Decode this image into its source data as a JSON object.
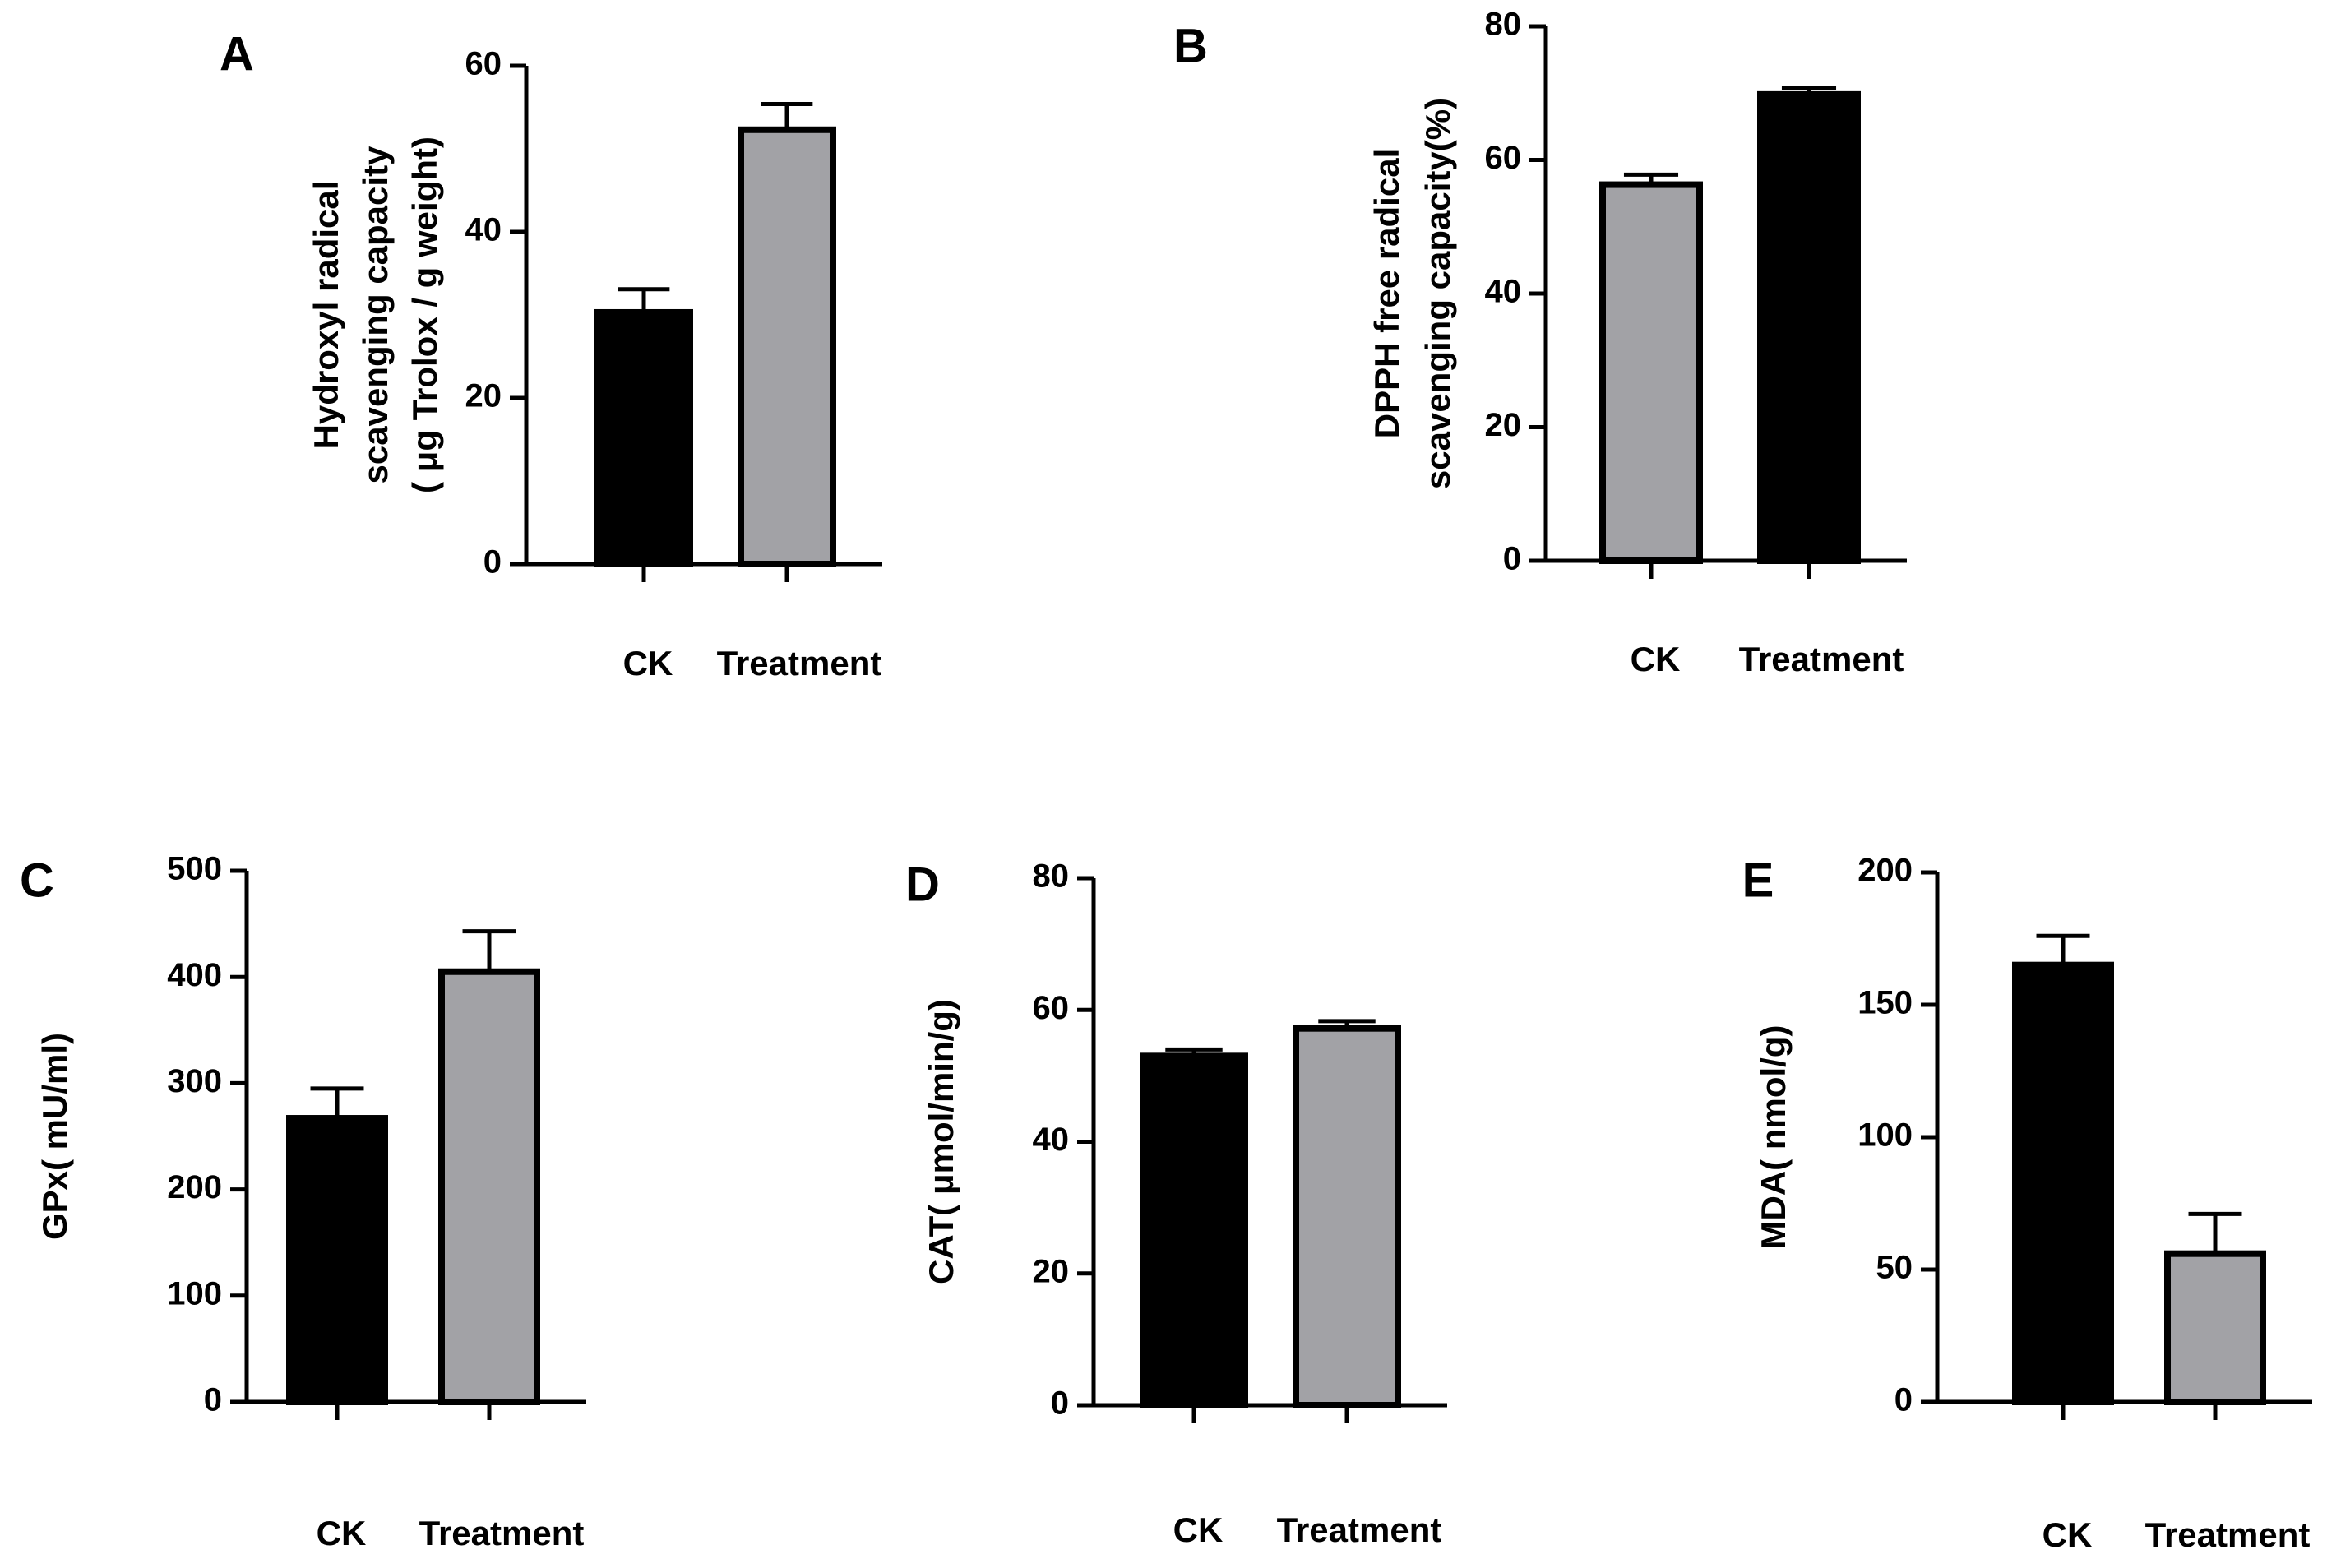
{
  "colors": {
    "dark": "#000000",
    "light": "#a2a2a6",
    "axis": "#000000"
  },
  "chart_data": [
    {
      "panel": "A",
      "type": "bar",
      "categories": [
        "CK",
        "Treatment"
      ],
      "values": [
        30.3,
        52.3
      ],
      "errors": [
        2.8,
        3.1
      ],
      "bar_colors": [
        "dark",
        "light"
      ],
      "ylabel": [
        "Hydroxyl radical",
        "scavenging capacity",
        "( μg Trolox / g weight)"
      ],
      "ylim": [
        0,
        60
      ],
      "yticks": [
        0,
        20,
        40,
        60
      ]
    },
    {
      "panel": "B",
      "type": "bar",
      "categories": [
        "CK",
        "Treatment"
      ],
      "values": [
        56.3,
        69.8
      ],
      "errors": [
        1.5,
        1.0
      ],
      "bar_colors": [
        "light",
        "dark"
      ],
      "ylabel": [
        "DPPH free radical",
        "scavenging capacity(%)"
      ],
      "ylim": [
        0,
        80
      ],
      "yticks": [
        0,
        20,
        40,
        60,
        80
      ]
    },
    {
      "panel": "C",
      "type": "bar",
      "categories": [
        "CK",
        "Treatment"
      ],
      "values": [
        267,
        405
      ],
      "errors": [
        28,
        38
      ],
      "bar_colors": [
        "dark",
        "light"
      ],
      "ylabel": [
        "GPx( mU/ml)"
      ],
      "ylim": [
        0,
        500
      ],
      "yticks": [
        0,
        100,
        200,
        300,
        400,
        500
      ]
    },
    {
      "panel": "D",
      "type": "bar",
      "categories": [
        "CK",
        "Treatment"
      ],
      "values": [
        53.0,
        57.2
      ],
      "errors": [
        1.0,
        1.1
      ],
      "bar_colors": [
        "dark",
        "light"
      ],
      "ylabel": [
        "CAT( μmol/min/g)"
      ],
      "ylim": [
        0,
        80
      ],
      "yticks": [
        0,
        20,
        40,
        60,
        80
      ]
    },
    {
      "panel": "E",
      "type": "bar",
      "categories": [
        "CK",
        "Treatment"
      ],
      "values": [
        165,
        56
      ],
      "errors": [
        11,
        15
      ],
      "bar_colors": [
        "dark",
        "light"
      ],
      "ylabel": [
        "MDA( nmol/g)"
      ],
      "ylim": [
        0,
        200
      ],
      "yticks": [
        0,
        50,
        100,
        150,
        200
      ]
    }
  ]
}
